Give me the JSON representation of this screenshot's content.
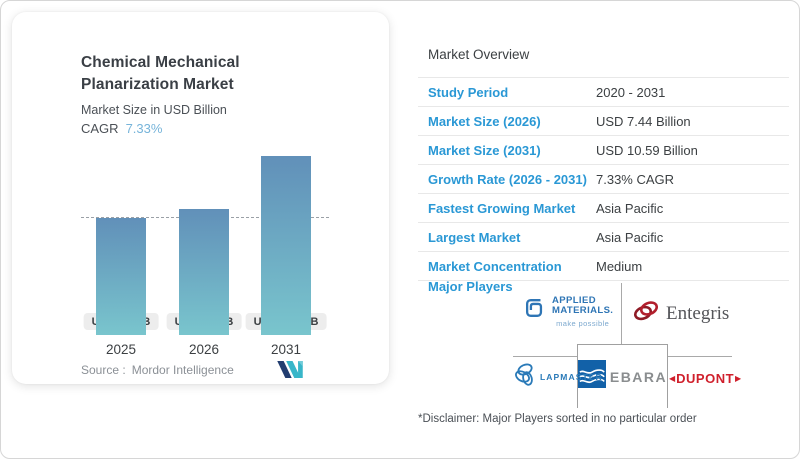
{
  "left_card": {
    "title": "Chemical Mechanical Planarization Market",
    "subtitle": "Market Size in USD Billion",
    "cagr_label": "CAGR",
    "cagr_value": "7.33%",
    "source_prefix": "Source :",
    "source_value": "Mordor Intelligence",
    "logo_name": "mordor-intelligence-logo"
  },
  "chart_data": {
    "type": "bar",
    "categories": [
      "2025",
      "2026",
      "2031"
    ],
    "values": [
      6.93,
      7.44,
      10.59
    ],
    "bar_labels": [
      "USD 6.93 B",
      "USD 7.44 B",
      "USD 10.59 B"
    ],
    "title": "Chemical Mechanical Planarization Market",
    "xlabel": "",
    "ylabel": "Market Size in USD Billion",
    "ylim": [
      0,
      11
    ],
    "grid": false,
    "reference_line_at": 6.93,
    "cagr": "7.33%",
    "bar_gradient_top": "#6190b9",
    "bar_gradient_bottom": "#79c5cd"
  },
  "overview": {
    "title": "Market Overview",
    "rows": [
      {
        "label": "Study Period",
        "value": "2020 - 2031"
      },
      {
        "label": "Market Size (2026)",
        "value": "USD 7.44 Billion"
      },
      {
        "label": "Market Size (2031)",
        "value": "USD 10.59 Billion"
      },
      {
        "label": "Growth Rate (2026 - 2031)",
        "value": "7.33% CAGR"
      },
      {
        "label": "Fastest Growing Market",
        "value": "Asia Pacific"
      },
      {
        "label": "Largest Market",
        "value": "Asia Pacific"
      },
      {
        "label": "Market Concentration",
        "value": "Medium"
      }
    ],
    "major_players_label": "Major Players",
    "major_players": [
      "Applied Materials",
      "Entegris",
      "Lapmaster",
      "EBARA",
      "DuPont"
    ],
    "applied_materials": {
      "line1": "APPLIED",
      "line2": "MATERIALS.",
      "tagline": "make possible"
    },
    "entegris_text": "Entegris",
    "lapmaster_text": "LAPMASTER",
    "ebara_text": "EBARA",
    "dupont_text": "DUPONT",
    "disclaimer": "*Disclaimer: Major Players sorted in no particular order"
  },
  "colors": {
    "label_blue": "#2a98d5",
    "cagr_blue": "#76b4da",
    "bar_top": "#6190b9",
    "bar_bottom": "#79c5cd",
    "mordor_navy": "#223d70",
    "mordor_teal": "#38b6c9",
    "applied_blue": "#2e75b5",
    "entegris_red": "#b21f2d",
    "lapmaster_blue": "#2a7ab8",
    "ebara_blue": "#1261a8",
    "ebara_gray": "#8a8d8f",
    "dupont_red": "#d0202c"
  }
}
